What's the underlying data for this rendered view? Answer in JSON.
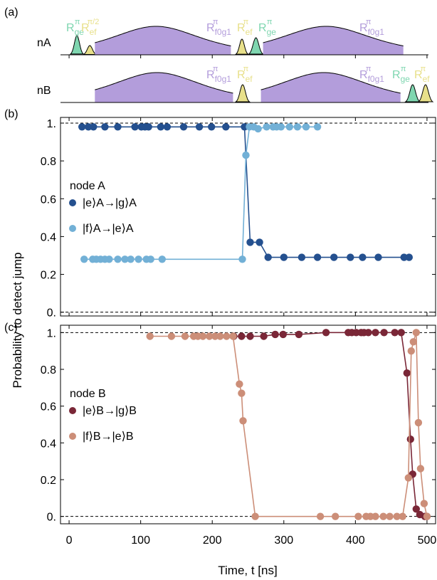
{
  "panel_labels": {
    "a": "(a)",
    "b": "(b)",
    "c": "(c)"
  },
  "row_labels": {
    "nA": "nA",
    "nB": "nB"
  },
  "colors": {
    "purple": "#b39ddb",
    "green": "#7fd6b0",
    "yellow": "#e8e08a",
    "dark_blue": "#24508f",
    "light_blue": "#72b0d6",
    "dark_red": "#7a2737",
    "salmon": "#cc8e78"
  },
  "pulse_labels": {
    "nA": [
      {
        "R": "R",
        "sub": "ge",
        "sup": "π",
        "color": "green"
      },
      {
        "R": "R",
        "sub": "ef",
        "sup": "π/2",
        "color": "yellow"
      },
      {
        "R": "R",
        "sub": "f0g1",
        "sup": "π",
        "color": "purple"
      },
      {
        "R": "R",
        "sub": "ef",
        "sup": "π",
        "color": "yellow"
      },
      {
        "R": "R",
        "sub": "ge",
        "sup": "π",
        "color": "green"
      },
      {
        "R": "R",
        "sub": "f0g1",
        "sup": "π",
        "color": "purple"
      }
    ],
    "nB": [
      {
        "R": "R",
        "sub": "f0g1",
        "sup": "π",
        "color": "purple"
      },
      {
        "R": "R",
        "sub": "ef",
        "sup": "π",
        "color": "yellow"
      },
      {
        "R": "R",
        "sub": "f0g1",
        "sup": "π",
        "color": "purple"
      },
      {
        "R": "R",
        "sub": "ge",
        "sup": "π",
        "color": "green"
      },
      {
        "R": "R",
        "sub": "ef",
        "sup": "π",
        "color": "yellow"
      }
    ]
  },
  "axis": {
    "xlabel": "Time, t [ns]",
    "ylabel": "Probability to detect jump",
    "x_ticks": [
      "0",
      "100",
      "200",
      "300",
      "400",
      "500"
    ],
    "y_ticks": [
      "0.",
      "0.2",
      "0.4",
      "0.6",
      "0.8",
      "1."
    ]
  },
  "chart_data": [
    {
      "type": "line",
      "panel": "(b)",
      "legend_title": "node A",
      "xlim": [
        -12,
        512
      ],
      "ylim": [
        -0.02,
        1.03
      ],
      "reference_lines": [
        0,
        1
      ],
      "series": [
        {
          "name": "|e⟩A→|g⟩A",
          "color": "dark_blue",
          "x": [
            18,
            27,
            34,
            50,
            68,
            92,
            101,
            106,
            111,
            128,
            137,
            160,
            182,
            199,
            219,
            245,
            253,
            266,
            278,
            300,
            325,
            347,
            370,
            393,
            410,
            432,
            468,
            475
          ],
          "y": [
            0.98,
            0.98,
            0.98,
            0.98,
            0.98,
            0.98,
            0.98,
            0.98,
            0.98,
            0.98,
            0.98,
            0.98,
            0.98,
            0.98,
            0.98,
            0.98,
            0.37,
            0.37,
            0.29,
            0.29,
            0.29,
            0.29,
            0.29,
            0.29,
            0.29,
            0.29,
            0.29,
            0.29
          ]
        },
        {
          "name": "|f⟩A→|e⟩A",
          "color": "light_blue",
          "x": [
            21,
            33,
            38,
            44,
            50,
            56,
            68,
            78,
            86,
            97,
            108,
            114,
            130,
            242,
            247,
            252,
            258,
            264,
            276,
            285,
            290,
            296,
            308,
            319,
            331,
            347
          ],
          "y": [
            0.28,
            0.28,
            0.28,
            0.28,
            0.28,
            0.28,
            0.28,
            0.28,
            0.28,
            0.28,
            0.28,
            0.28,
            0.28,
            0.28,
            0.83,
            0.98,
            0.98,
            0.97,
            0.98,
            0.98,
            0.98,
            0.98,
            0.98,
            0.98,
            0.98,
            0.98
          ]
        }
      ]
    },
    {
      "type": "line",
      "panel": "(c)",
      "legend_title": "node B",
      "xlim": [
        -12,
        512
      ],
      "ylim": [
        -0.04,
        1.04
      ],
      "reference_lines": [
        0,
        1
      ],
      "series": [
        {
          "name": "|e⟩B→|g⟩B",
          "color": "dark_red",
          "x": [
            230,
            241,
            253,
            272,
            288,
            299,
            321,
            359,
            390,
            395,
            401,
            408,
            412,
            418,
            428,
            440,
            455,
            464,
            472,
            477,
            480,
            485,
            490,
            497,
            500
          ],
          "y": [
            0.98,
            0.98,
            0.98,
            0.98,
            0.99,
            0.99,
            0.99,
            1.0,
            1.0,
            1.0,
            1.0,
            1.0,
            1.0,
            1.0,
            1.0,
            1.0,
            1.0,
            1.0,
            0.78,
            0.42,
            0.23,
            0.04,
            0.01,
            0.0,
            0.0
          ]
        },
        {
          "name": "|f⟩B→|e⟩B",
          "color": "salmon",
          "x": [
            113,
            143,
            162,
            174,
            180,
            187,
            196,
            204,
            211,
            220,
            229,
            238,
            241,
            243,
            260,
            351,
            372,
            404,
            415,
            421,
            428,
            439,
            448,
            458,
            466,
            474,
            478,
            481,
            485,
            488,
            491,
            496,
            500
          ],
          "y": [
            0.98,
            0.98,
            0.98,
            0.98,
            0.98,
            0.98,
            0.98,
            0.98,
            0.98,
            0.98,
            0.98,
            0.72,
            0.67,
            0.52,
            0.0,
            0.0,
            0.0,
            0.0,
            0.0,
            0.0,
            0.0,
            0.0,
            0.0,
            0.0,
            0.0,
            0.21,
            0.9,
            0.95,
            1.0,
            0.51,
            0.26,
            0.07,
            0.0
          ]
        }
      ]
    }
  ]
}
